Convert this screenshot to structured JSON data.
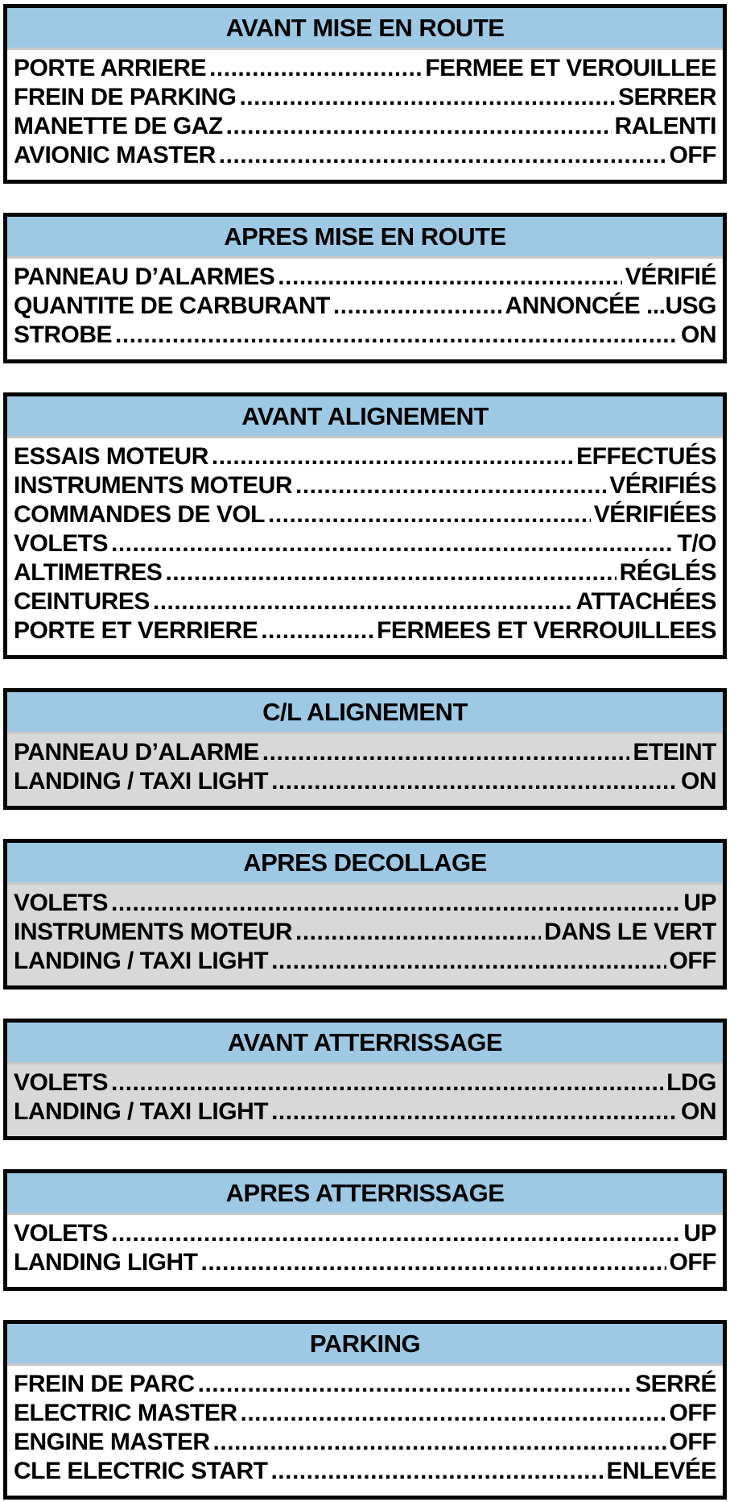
{
  "colors": {
    "header_bg": "#9dc9e4",
    "grey_body_bg": "#d8d8d8",
    "border": "#050505",
    "text": "#000000"
  },
  "sections": [
    {
      "title": "AVANT MISE EN ROUTE",
      "body_bg": "white",
      "items": [
        {
          "label": "PORTE ARRIERE",
          "value": "FERMEE ET VEROUILLEE"
        },
        {
          "label": "FREIN DE PARKING",
          "value": "SERRER"
        },
        {
          "label": "MANETTE DE GAZ",
          "value": "RALENTI"
        },
        {
          "label": "AVIONIC MASTER",
          "value": "OFF"
        }
      ]
    },
    {
      "title": "APRES MISE EN ROUTE",
      "body_bg": "white",
      "items": [
        {
          "label": "PANNEAU D’ALARMES",
          "value": "VÉRIFIÉ"
        },
        {
          "label": "QUANTITE DE CARBURANT",
          "value": "ANNONCÉE ...USG"
        },
        {
          "label": "STROBE",
          "value": "ON"
        }
      ]
    },
    {
      "title": "AVANT ALIGNEMENT",
      "body_bg": "white",
      "items": [
        {
          "label": "ESSAIS MOTEUR",
          "value": "EFFECTUÉS"
        },
        {
          "label": "INSTRUMENTS MOTEUR",
          "value": "VÉRIFIÉS"
        },
        {
          "label": "COMMANDES DE VOL",
          "value": "VÉRIFIÉES"
        },
        {
          "label": "VOLETS",
          "value": "T/O"
        },
        {
          "label": "ALTIMETRES",
          "value": "RÉGLÉS"
        },
        {
          "label": "CEINTURES",
          "value": "ATTACHÉES"
        },
        {
          "label": "PORTE ET VERRIERE",
          "value": "FERMEES ET VERROUILLEES"
        }
      ]
    },
    {
      "title": "C/L ALIGNEMENT",
      "body_bg": "grey",
      "items": [
        {
          "label": "PANNEAU D’ALARME",
          "value": "ETEINT"
        },
        {
          "label": "LANDING / TAXI LIGHT",
          "value": "ON"
        }
      ]
    },
    {
      "title": "APRES DECOLLAGE",
      "body_bg": "grey",
      "items": [
        {
          "label": "VOLETS",
          "value": "UP"
        },
        {
          "label": "INSTRUMENTS MOTEUR",
          "value": "DANS LE VERT"
        },
        {
          "label": "LANDING / TAXI LIGHT",
          "value": "OFF"
        }
      ]
    },
    {
      "title": "AVANT ATTERRISSAGE",
      "body_bg": "grey",
      "items": [
        {
          "label": "VOLETS",
          "value": "LDG"
        },
        {
          "label": "LANDING / TAXI LIGHT",
          "value": "ON"
        }
      ]
    },
    {
      "title": "APRES ATTERRISSAGE",
      "body_bg": "white",
      "items": [
        {
          "label": "VOLETS",
          "value": "UP"
        },
        {
          "label": "LANDING LIGHT",
          "value": "OFF"
        }
      ]
    },
    {
      "title": "PARKING",
      "body_bg": "white",
      "items": [
        {
          "label": "FREIN DE PARC",
          "value": "SERRÉ"
        },
        {
          "label": "ELECTRIC MASTER",
          "value": "OFF"
        },
        {
          "label": "ENGINE MASTER",
          "value": "OFF"
        },
        {
          "label": "CLE ELECTRIC START",
          "value": "ENLEVÉE"
        }
      ]
    }
  ]
}
